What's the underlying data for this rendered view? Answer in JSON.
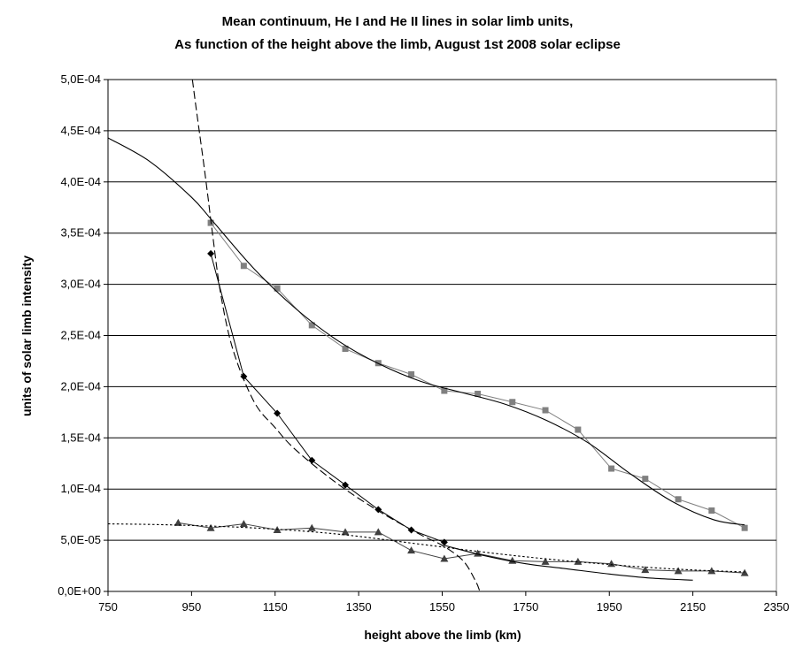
{
  "chart_data": {
    "type": "line",
    "title": "Mean continuum, He I and He II lines in solar limb units,",
    "subtitle": "As function of the height above the limb, August 1st 2008 solar eclipse",
    "xlabel": "height above the limb (km)",
    "ylabel": "units of solar limb intensity",
    "xlim": [
      750,
      2350
    ],
    "ylim": [
      0,
      0.0005
    ],
    "x_ticks": [
      750,
      950,
      1150,
      1350,
      1550,
      1750,
      1950,
      2150,
      2350
    ],
    "x_tick_labels": [
      "750",
      "950",
      "1150",
      "1350",
      "1550",
      "1750",
      "1950",
      "2150",
      "2350"
    ],
    "y_ticks": [
      0,
      5e-05,
      0.0001,
      0.00015,
      0.0002,
      0.00025,
      0.0003,
      0.00035,
      0.0004,
      0.00045,
      0.0005
    ],
    "y_tick_labels": [
      "0,0E+00",
      "5,0E-05",
      "1,0E-04",
      "1,5E-04",
      "2,0E-04",
      "2,5E-04",
      "3,0E-04",
      "3,5E-04",
      "4,0E-04",
      "4,5E-04",
      "5,0E-04"
    ],
    "grid": "horizontal",
    "legend": "none",
    "series": [
      {
        "marker": "square",
        "color": "#808080",
        "x": [
          996,
          1075,
          1155,
          1238,
          1318,
          1397,
          1476,
          1555,
          1635,
          1718,
          1797,
          1875,
          1955,
          2036,
          2115,
          2195,
          2274
        ],
        "y": [
          0.00036,
          0.000318,
          0.000296,
          0.00026,
          0.000237,
          0.000223,
          0.000212,
          0.000196,
          0.000193,
          0.000185,
          0.000177,
          0.000158,
          0.00012,
          0.00011,
          9e-05,
          7.9e-05,
          6.2e-05
        ]
      },
      {
        "marker": "diamond",
        "color": "#000000",
        "x": [
          996,
          1075,
          1155,
          1238,
          1318,
          1397,
          1476,
          1555
        ],
        "y": [
          0.00033,
          0.00021,
          0.000174,
          0.000128,
          0.000104,
          8e-05,
          6e-05,
          4.8e-05
        ]
      },
      {
        "marker": "triangle",
        "color": "#404040",
        "x": [
          918,
          996,
          1075,
          1155,
          1238,
          1318,
          1397,
          1476,
          1555,
          1635,
          1718,
          1797,
          1875,
          1955,
          2036,
          2115,
          2195,
          2274
        ],
        "y": [
          6.7e-05,
          6.2e-05,
          6.6e-05,
          6e-05,
          6.2e-05,
          5.8e-05,
          5.8e-05,
          4e-05,
          3.2e-05,
          3.7e-05,
          3e-05,
          2.9e-05,
          2.9e-05,
          2.7e-05,
          2.1e-05,
          2e-05,
          2e-05,
          1.8e-05
        ]
      },
      {
        "style": "solid-fit",
        "color": "#000000",
        "x": [
          750,
          850,
          950,
          1000,
          1100,
          1200,
          1300,
          1400,
          1500,
          1600,
          1700,
          1800,
          1900,
          2000,
          2100,
          2200,
          2274
        ],
        "y": [
          0.000443,
          0.00042,
          0.000385,
          0.000362,
          0.000315,
          0.000276,
          0.000245,
          0.000222,
          0.000205,
          0.000194,
          0.000183,
          0.000167,
          0.000145,
          0.000115,
          8.8e-05,
          7e-05,
          6.5e-05
        ]
      },
      {
        "style": "dashed-fit",
        "color": "#000000",
        "x": [
          952,
          960,
          970,
          980,
          990,
          1000,
          1020,
          1050,
          1100,
          1150,
          1200,
          1300,
          1400,
          1500,
          1550,
          1600,
          1630,
          1640
        ],
        "y": [
          0.0005,
          0.000475,
          0.000445,
          0.000415,
          0.000383,
          0.00035,
          0.00029,
          0.000235,
          0.000185,
          0.00016,
          0.000138,
          0.000105,
          7.8e-05,
          5.5e-05,
          4.5e-05,
          3e-05,
          1e-05,
          0
        ]
      },
      {
        "style": "thin-fit",
        "color": "#000000",
        "x": [
          1555,
          1650,
          1750,
          1850,
          1950,
          2050,
          2150
        ],
        "y": [
          4.5e-05,
          3.5e-05,
          2.7e-05,
          2.2e-05,
          1.7e-05,
          1.3e-05,
          1.1e-05
        ]
      },
      {
        "style": "dotted-fit",
        "color": "#000000",
        "x": [
          750,
          900,
          1100,
          1300,
          1500,
          1700,
          1900,
          2100,
          2274
        ],
        "y": [
          6.6e-05,
          6.5e-05,
          6.2e-05,
          5.6e-05,
          4.6e-05,
          3.6e-05,
          2.8e-05,
          2.2e-05,
          1.9e-05
        ]
      }
    ]
  }
}
